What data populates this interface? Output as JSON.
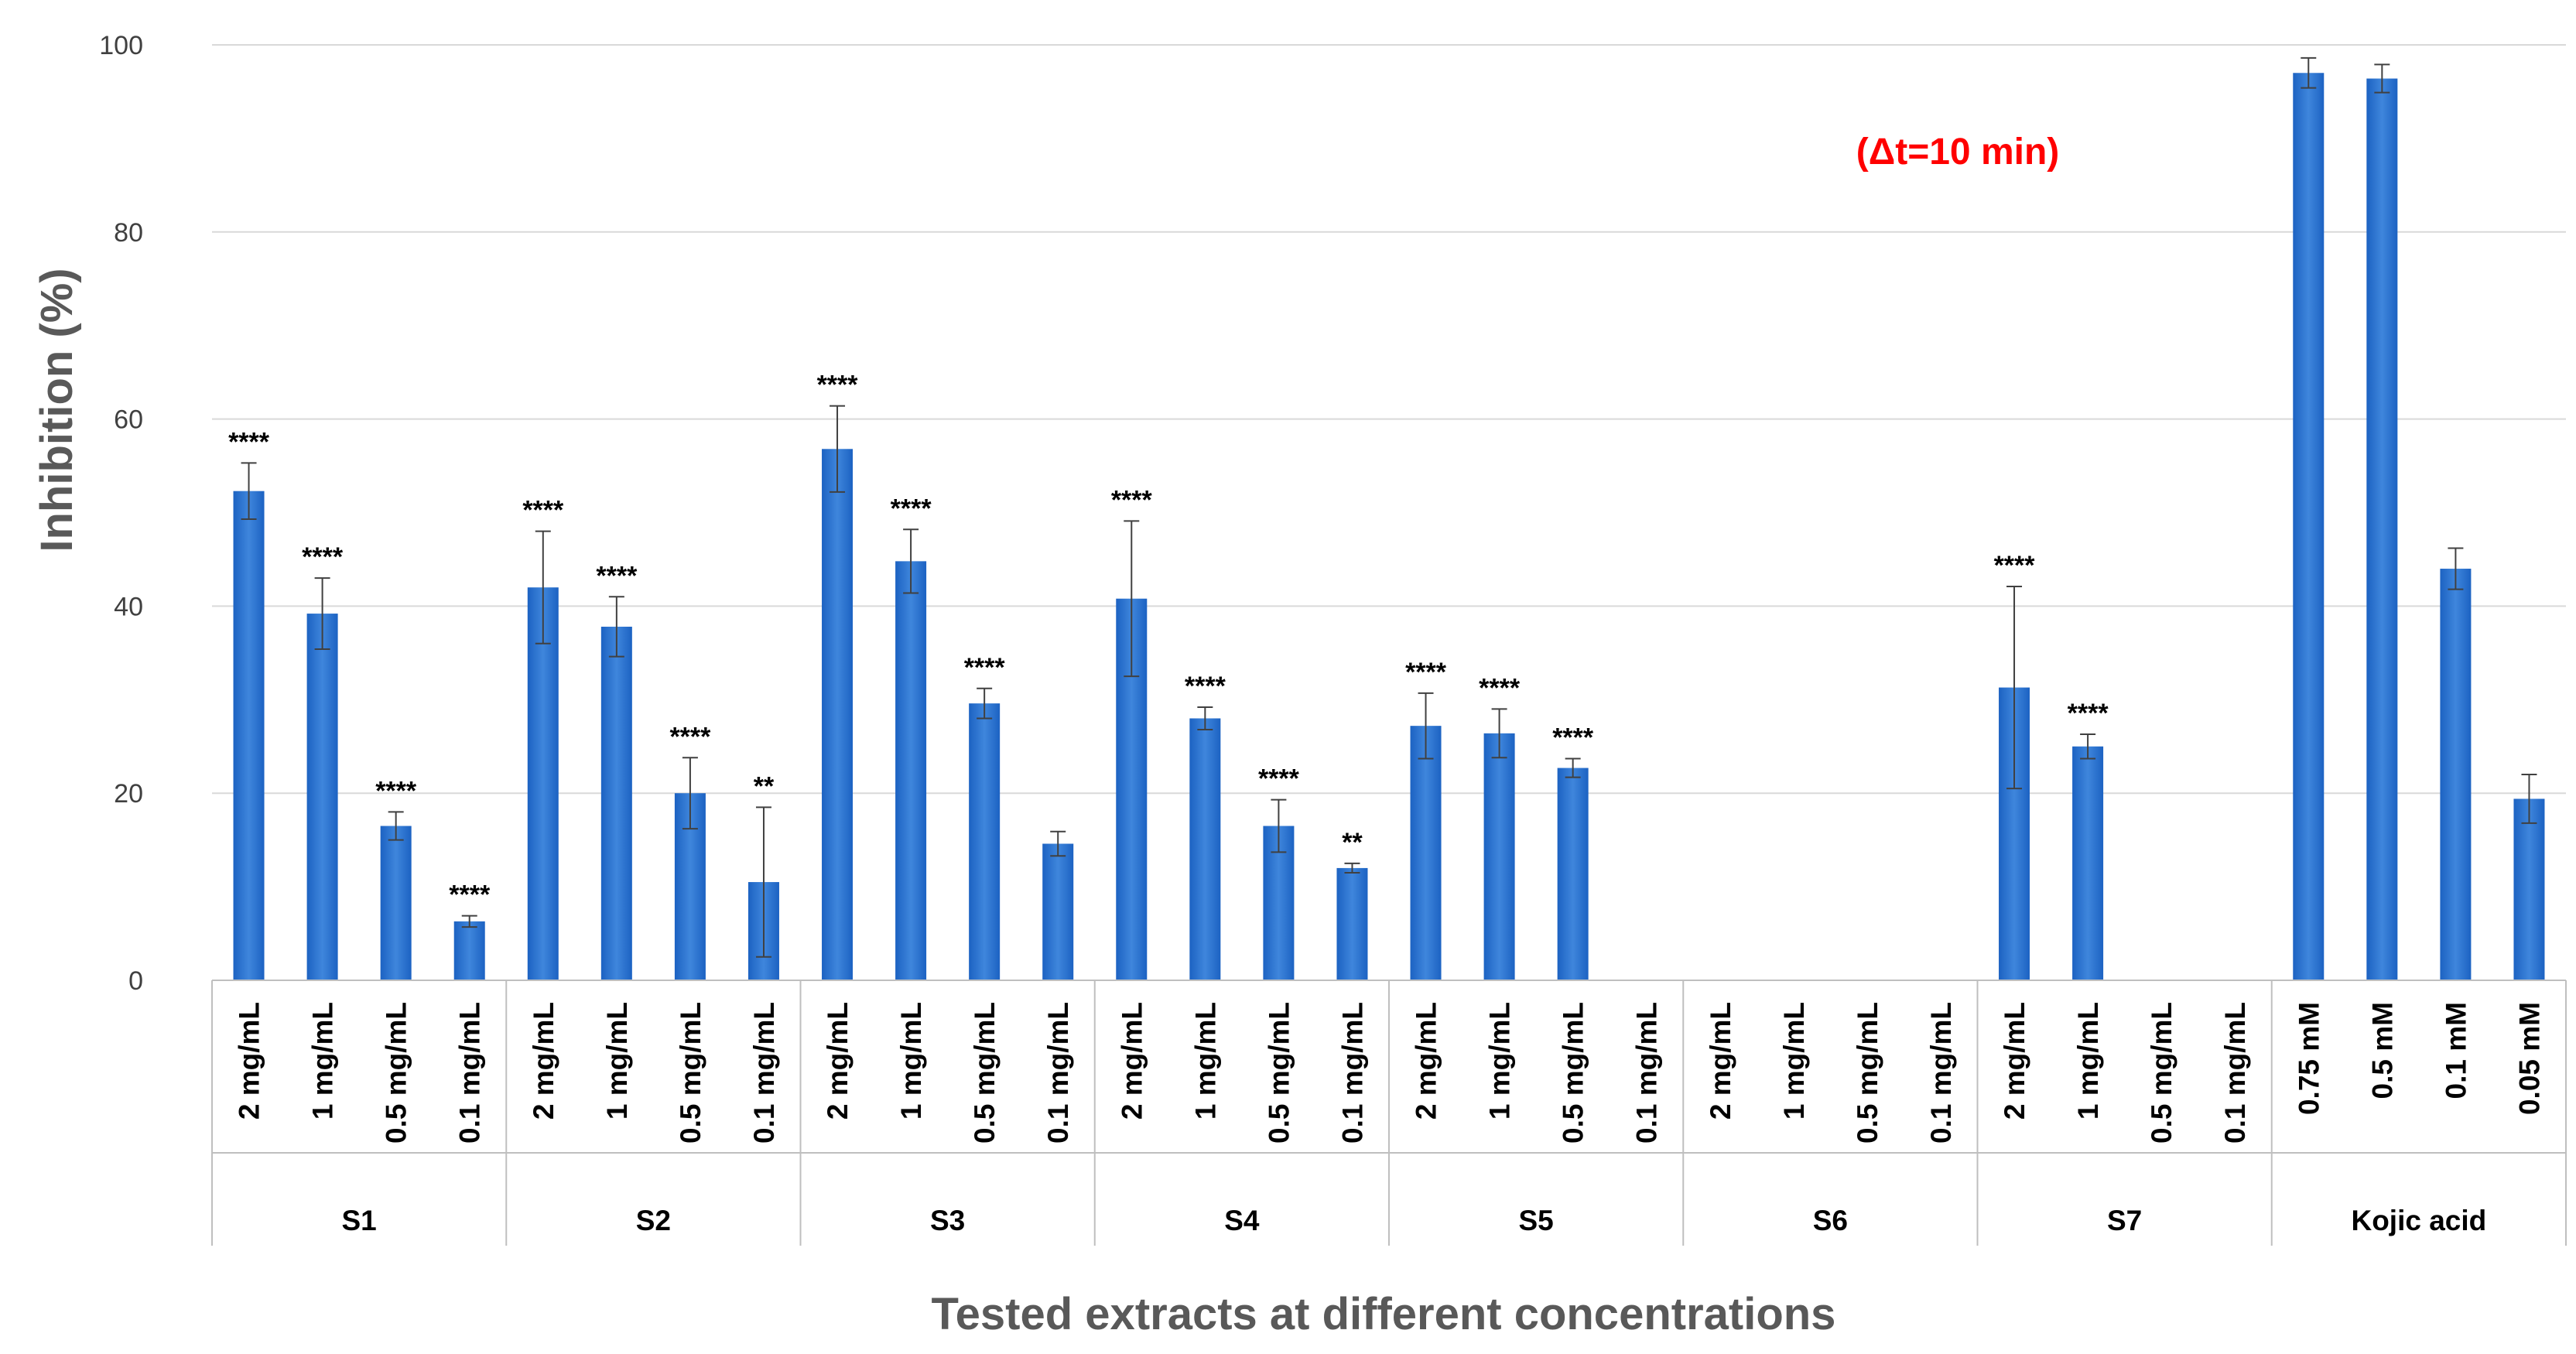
{
  "chart_data": {
    "type": "bar",
    "title": "",
    "annotation": "(Δt=10 min)",
    "xlabel": "Tested extracts at different concentrations",
    "ylabel": "Inhibition (%)",
    "ylim": [
      0,
      100
    ],
    "yticks": [
      "0",
      "20",
      "40",
      "60",
      "80",
      "100"
    ],
    "grid": true,
    "colors": {
      "bar": "#1f6fd0",
      "bar_light": "#4a8fe0",
      "annotation": "#ff0000",
      "grid": "#d9d9d9",
      "axis": "#bfbfbf"
    },
    "groups": [
      {
        "name": "S1",
        "bars": [
          {
            "label": "2 mg/mL",
            "value": 52.3,
            "error": 3.0,
            "sig": "****"
          },
          {
            "label": "1 mg/mL",
            "value": 39.2,
            "error": 3.8,
            "sig": "****"
          },
          {
            "label": "0.5 mg/mL",
            "value": 16.5,
            "error": 1.5,
            "sig": "****"
          },
          {
            "label": "0.1 mg/mL",
            "value": 6.3,
            "error": 0.6,
            "sig": "****"
          }
        ]
      },
      {
        "name": "S2",
        "bars": [
          {
            "label": "2 mg/mL",
            "value": 42.0,
            "error": 6.0,
            "sig": "****"
          },
          {
            "label": "1 mg/mL",
            "value": 37.8,
            "error": 3.2,
            "sig": "****"
          },
          {
            "label": "0.5 mg/mL",
            "value": 20.0,
            "error": 3.8,
            "sig": "****"
          },
          {
            "label": "0.1 mg/mL",
            "value": 10.5,
            "error": 8.0,
            "sig": "**"
          }
        ]
      },
      {
        "name": "S3",
        "bars": [
          {
            "label": "2 mg/mL",
            "value": 56.8,
            "error": 4.6,
            "sig": "****"
          },
          {
            "label": "1 mg/mL",
            "value": 44.8,
            "error": 3.4,
            "sig": "****"
          },
          {
            "label": "0.5 mg/mL",
            "value": 29.6,
            "error": 1.6,
            "sig": "****"
          },
          {
            "label": "0.1 mg/mL",
            "value": 14.6,
            "error": 1.3,
            "sig": ""
          }
        ]
      },
      {
        "name": "S4",
        "bars": [
          {
            "label": "2 mg/mL",
            "value": 40.8,
            "error": 8.3,
            "sig": "****"
          },
          {
            "label": "1 mg/mL",
            "value": 28.0,
            "error": 1.2,
            "sig": "****"
          },
          {
            "label": "0.5 mg/mL",
            "value": 16.5,
            "error": 2.8,
            "sig": "****"
          },
          {
            "label": "0.1 mg/mL",
            "value": 12.0,
            "error": 0.5,
            "sig": "**"
          }
        ]
      },
      {
        "name": "S5",
        "bars": [
          {
            "label": "2 mg/mL",
            "value": 27.2,
            "error": 3.5,
            "sig": "****"
          },
          {
            "label": "1 mg/mL",
            "value": 26.4,
            "error": 2.6,
            "sig": "****"
          },
          {
            "label": "0.5 mg/mL",
            "value": 22.7,
            "error": 1.0,
            "sig": "****"
          },
          {
            "label": "0.1 mg/mL",
            "value": 0,
            "error": 0,
            "sig": ""
          }
        ]
      },
      {
        "name": "S6",
        "bars": [
          {
            "label": "2 mg/mL",
            "value": 0,
            "error": 0,
            "sig": ""
          },
          {
            "label": "1 mg/mL",
            "value": 0,
            "error": 0,
            "sig": ""
          },
          {
            "label": "0.5 mg/mL",
            "value": 0,
            "error": 0,
            "sig": ""
          },
          {
            "label": "0.1 mg/mL",
            "value": 0,
            "error": 0,
            "sig": ""
          }
        ]
      },
      {
        "name": "S7",
        "bars": [
          {
            "label": "2 mg/mL",
            "value": 31.3,
            "error": 10.8,
            "sig": "****"
          },
          {
            "label": "1 mg/mL",
            "value": 25.0,
            "error": 1.3,
            "sig": "****"
          },
          {
            "label": "0.5 mg/mL",
            "value": 0,
            "error": 0,
            "sig": ""
          },
          {
            "label": "0.1 mg/mL",
            "value": 0,
            "error": 0,
            "sig": ""
          }
        ]
      },
      {
        "name": "Kojic acid",
        "bars": [
          {
            "label": "0.75 mM",
            "value": 97.0,
            "error": 1.6,
            "sig": ""
          },
          {
            "label": "0.5 mM",
            "value": 96.4,
            "error": 1.5,
            "sig": ""
          },
          {
            "label": "0.1 mM",
            "value": 44.0,
            "error": 2.2,
            "sig": ""
          },
          {
            "label": "0.05 mM",
            "value": 19.4,
            "error": 2.6,
            "sig": ""
          }
        ]
      }
    ]
  }
}
